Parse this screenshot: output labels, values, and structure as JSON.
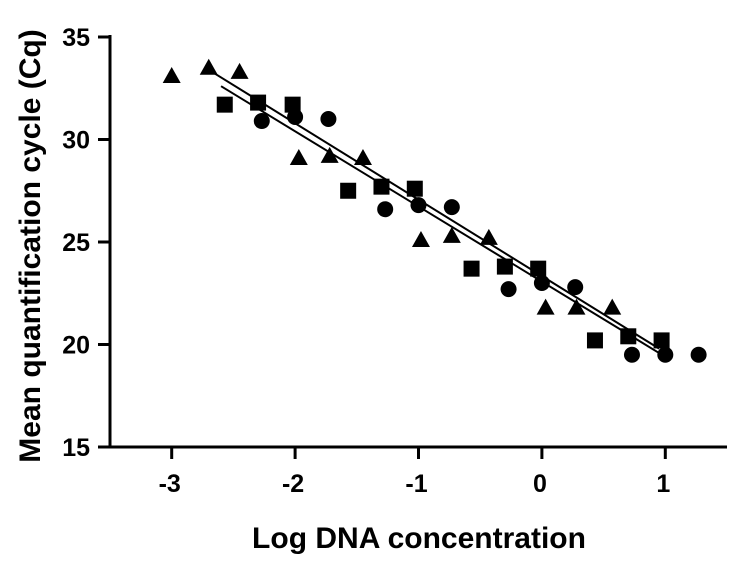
{
  "chart_data": {
    "type": "scatter",
    "title": "",
    "xlabel": "Log DNA concentration",
    "ylabel": "Mean quantification cycle (Cq)",
    "xlim": [
      -3.5,
      1.5
    ],
    "ylim": [
      15,
      35
    ],
    "xticks": [
      -3,
      -2,
      -1,
      0,
      1
    ],
    "xtick_labels": [
      "-3",
      "-2",
      "-1",
      "0",
      "1"
    ],
    "yticks": [
      15,
      20,
      25,
      30,
      35
    ],
    "ytick_labels": [
      "15",
      "20",
      "25",
      "30",
      "35"
    ],
    "grid": false,
    "legend": "none",
    "series": [
      {
        "marker": "triangle",
        "points": [
          {
            "x": -3.0,
            "y": 33.1
          },
          {
            "x": -2.7,
            "y": 33.5
          },
          {
            "x": -2.45,
            "y": 33.3
          },
          {
            "x": -1.97,
            "y": 29.1
          },
          {
            "x": -1.72,
            "y": 29.2
          },
          {
            "x": -1.45,
            "y": 29.1
          },
          {
            "x": -0.98,
            "y": 25.1
          },
          {
            "x": -0.73,
            "y": 25.3
          },
          {
            "x": -0.43,
            "y": 25.2
          },
          {
            "x": 0.03,
            "y": 21.8
          },
          {
            "x": 0.28,
            "y": 21.8
          },
          {
            "x": 0.57,
            "y": 21.8
          }
        ]
      },
      {
        "marker": "square",
        "points": [
          {
            "x": -2.57,
            "y": 31.7
          },
          {
            "x": -2.3,
            "y": 31.8
          },
          {
            "x": -2.02,
            "y": 31.7
          },
          {
            "x": -1.57,
            "y": 27.5
          },
          {
            "x": -1.3,
            "y": 27.7
          },
          {
            "x": -1.03,
            "y": 27.6
          },
          {
            "x": -0.57,
            "y": 23.7
          },
          {
            "x": -0.3,
            "y": 23.8
          },
          {
            "x": -0.03,
            "y": 23.7
          },
          {
            "x": 0.43,
            "y": 20.2
          },
          {
            "x": 0.7,
            "y": 20.4
          },
          {
            "x": 0.97,
            "y": 20.2
          }
        ]
      },
      {
        "marker": "circle",
        "points": [
          {
            "x": -2.27,
            "y": 30.9
          },
          {
            "x": -2.0,
            "y": 31.1
          },
          {
            "x": -1.73,
            "y": 31.0
          },
          {
            "x": -1.27,
            "y": 26.6
          },
          {
            "x": -1.0,
            "y": 26.8
          },
          {
            "x": -0.73,
            "y": 26.7
          },
          {
            "x": -0.27,
            "y": 22.7
          },
          {
            "x": 0.0,
            "y": 23.0
          },
          {
            "x": 0.27,
            "y": 22.8
          },
          {
            "x": 0.73,
            "y": 19.5
          },
          {
            "x": 1.0,
            "y": 19.5
          },
          {
            "x": 1.27,
            "y": 19.5
          }
        ]
      }
    ],
    "fit_lines": [
      {
        "x": [
          -2.7,
          0.95
        ],
        "y": [
          33.4,
          19.8
        ]
      },
      {
        "x": [
          -2.6,
          1.0
        ],
        "y": [
          32.6,
          19.4
        ]
      }
    ],
    "colors": {
      "marker": "#000000",
      "axis": "#000000",
      "background": "#ffffff"
    }
  }
}
